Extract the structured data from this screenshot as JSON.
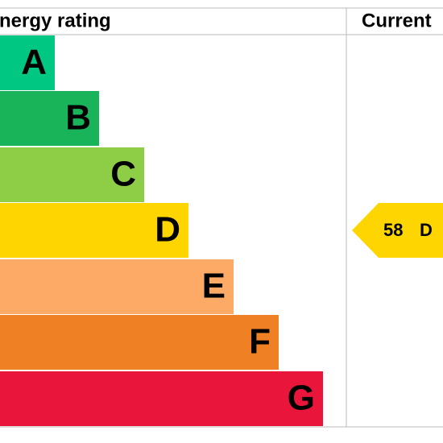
{
  "header": {
    "left_title": "nergy rating",
    "right_title": "Current"
  },
  "bands": [
    {
      "letter": "A",
      "color": "#00c781"
    },
    {
      "letter": "B",
      "color": "#19b459"
    },
    {
      "letter": "C",
      "color": "#8dce46"
    },
    {
      "letter": "D",
      "color": "#ffd500"
    },
    {
      "letter": "E",
      "color": "#fcaa65"
    },
    {
      "letter": "F",
      "color": "#ef8023"
    },
    {
      "letter": "G",
      "color": "#e9153b"
    }
  ],
  "current": {
    "score": 58,
    "band": "D"
  }
}
